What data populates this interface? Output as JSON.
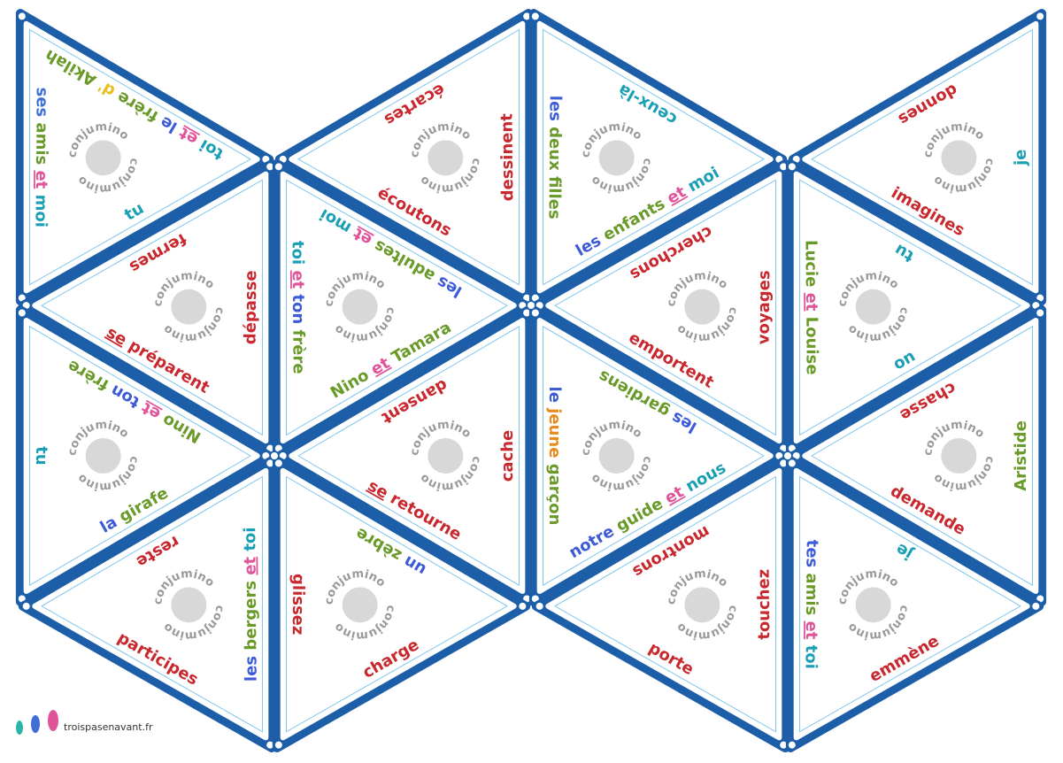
{
  "logo": "conjumino",
  "footer": "troispasenavant.fr",
  "tiles": [
    {
      "side": [
        [
          "ses",
          "#3d6fd6"
        ],
        [
          "amis",
          "#6a9a2a"
        ],
        [
          "et",
          "#e0559a",
          1
        ],
        [
          "moi",
          "#1a9fb5"
        ]
      ],
      "upper": [
        [
          "toi",
          "#1a9fb5"
        ],
        [
          "et",
          "#e0559a",
          1
        ],
        [
          "le",
          "#3d5bd6"
        ],
        [
          "frère",
          "#6a9a2a"
        ],
        [
          "d'",
          "#e8c020"
        ],
        [
          "Akilah",
          "#6a9a2a"
        ]
      ],
      "lower": [
        [
          "tu",
          "#1a9fb5"
        ]
      ]
    },
    {
      "side": [
        [
          "dessinent",
          "#c8282e"
        ]
      ],
      "upper": [
        [
          "écartes",
          "#c8282e"
        ]
      ],
      "lower": [
        [
          "écoutons",
          "#c8282e"
        ]
      ]
    },
    {
      "side": [
        [
          "les",
          "#3d5bd6"
        ],
        [
          "deux",
          "#6a9a2a"
        ],
        [
          "filles",
          "#6a9a2a"
        ]
      ],
      "upper": [
        [
          "ceux-là",
          "#1a9fb5"
        ]
      ],
      "lower": [
        [
          "les",
          "#3d5bd6"
        ],
        [
          "enfants",
          "#6a9a2a"
        ],
        [
          "et",
          "#e0559a",
          1
        ],
        [
          "moi",
          "#1a9fb5"
        ]
      ]
    },
    {
      "side": [
        [
          "je",
          "#1a9fb5"
        ]
      ],
      "upper": [
        [
          "donnes",
          "#c8282e"
        ]
      ],
      "lower": [
        [
          "imagines",
          "#c8282e"
        ]
      ]
    },
    {
      "side": [
        [
          "dépasse",
          "#c8282e"
        ]
      ],
      "upper": [
        [
          "fermes",
          "#c8282e"
        ]
      ],
      "lower": [
        [
          "se",
          "#c8282e",
          1
        ],
        [
          "préparent",
          "#c8282e"
        ]
      ]
    },
    {
      "side": [
        [
          "toi",
          "#1a9fb5"
        ],
        [
          "et",
          "#e0559a",
          1
        ],
        [
          "ton",
          "#3d5bd6"
        ],
        [
          "frère",
          "#6a9a2a"
        ]
      ],
      "upper": [
        [
          "les",
          "#3d5bd6"
        ],
        [
          "adultes",
          "#6a9a2a"
        ],
        [
          "et",
          "#e0559a",
          1
        ],
        [
          "moi",
          "#1a9fb5"
        ]
      ],
      "lower": [
        [
          "Nino",
          "#6a9a2a"
        ],
        [
          "et",
          "#e0559a",
          1
        ],
        [
          "Tamara",
          "#6a9a2a"
        ]
      ]
    },
    {
      "side": [
        [
          "voyages",
          "#c8282e"
        ]
      ],
      "upper": [
        [
          "cherchons",
          "#c8282e"
        ]
      ],
      "lower": [
        [
          "emportent",
          "#c8282e"
        ]
      ]
    },
    {
      "side": [
        [
          "Lucie",
          "#6a9a2a"
        ],
        [
          "et",
          "#e0559a",
          1
        ],
        [
          "Louise",
          "#6a9a2a"
        ]
      ],
      "upper": [
        [
          "tu",
          "#1a9fb5"
        ]
      ],
      "lower": [
        [
          "on",
          "#1a9fb5"
        ]
      ]
    },
    {
      "side": [
        [
          "tu",
          "#1a9fb5"
        ]
      ],
      "upper": [
        [
          "Nino",
          "#6a9a2a"
        ],
        [
          "et",
          "#e0559a",
          1
        ],
        [
          "ton",
          "#3d5bd6"
        ],
        [
          "frère",
          "#6a9a2a"
        ]
      ],
      "lower": [
        [
          "la",
          "#3d5bd6"
        ],
        [
          "girafe",
          "#6a9a2a"
        ]
      ]
    },
    {
      "side": [
        [
          "cache",
          "#c8282e"
        ]
      ],
      "upper": [
        [
          "dansent",
          "#c8282e"
        ]
      ],
      "lower": [
        [
          "se",
          "#c8282e",
          1
        ],
        [
          "retourne",
          "#c8282e"
        ]
      ]
    },
    {
      "side": [
        [
          "le",
          "#3d5bd6"
        ],
        [
          "jeune",
          "#e88a1a"
        ],
        [
          "garçon",
          "#6a9a2a"
        ]
      ],
      "upper": [
        [
          "les",
          "#3d5bd6"
        ],
        [
          "gardiens",
          "#6a9a2a"
        ]
      ],
      "lower": [
        [
          "notre",
          "#3d5bd6"
        ],
        [
          "guide",
          "#6a9a2a"
        ],
        [
          "et",
          "#e0559a",
          1
        ],
        [
          "nous",
          "#1a9fb5"
        ]
      ]
    },
    {
      "side": [
        [
          "Aristide",
          "#6a9a2a"
        ]
      ],
      "upper": [
        [
          "chasse",
          "#c8282e"
        ]
      ],
      "lower": [
        [
          "demande",
          "#c8282e"
        ]
      ]
    },
    {
      "side": [
        [
          "les",
          "#3d5bd6"
        ],
        [
          "bergers",
          "#6a9a2a"
        ],
        [
          "et",
          "#e0559a",
          1
        ],
        [
          "toi",
          "#1a9fb5"
        ]
      ],
      "upper": [
        [
          "reste",
          "#c8282e"
        ]
      ],
      "lower": [
        [
          "participes",
          "#c8282e"
        ]
      ]
    },
    {
      "side": [
        [
          "glissez",
          "#c8282e"
        ]
      ],
      "upper": [
        [
          "un",
          "#3d5bd6"
        ],
        [
          "zèbre",
          "#6a9a2a"
        ]
      ],
      "lower": [
        [
          "charge",
          "#c8282e"
        ]
      ]
    },
    {
      "side": [
        [
          "touchez",
          "#c8282e"
        ]
      ],
      "upper": [
        [
          "montrons",
          "#c8282e"
        ]
      ],
      "lower": [
        [
          "porte",
          "#c8282e"
        ]
      ]
    },
    {
      "side": [
        [
          "tes",
          "#3d5bd6"
        ],
        [
          "amis",
          "#6a9a2a"
        ],
        [
          "et",
          "#e0559a",
          1
        ],
        [
          "toi",
          "#1a9fb5"
        ]
      ],
      "upper": [
        [
          "je",
          "#1a9fb5"
        ]
      ],
      "lower": [
        [
          "emmène",
          "#c8282e"
        ]
      ]
    }
  ]
}
